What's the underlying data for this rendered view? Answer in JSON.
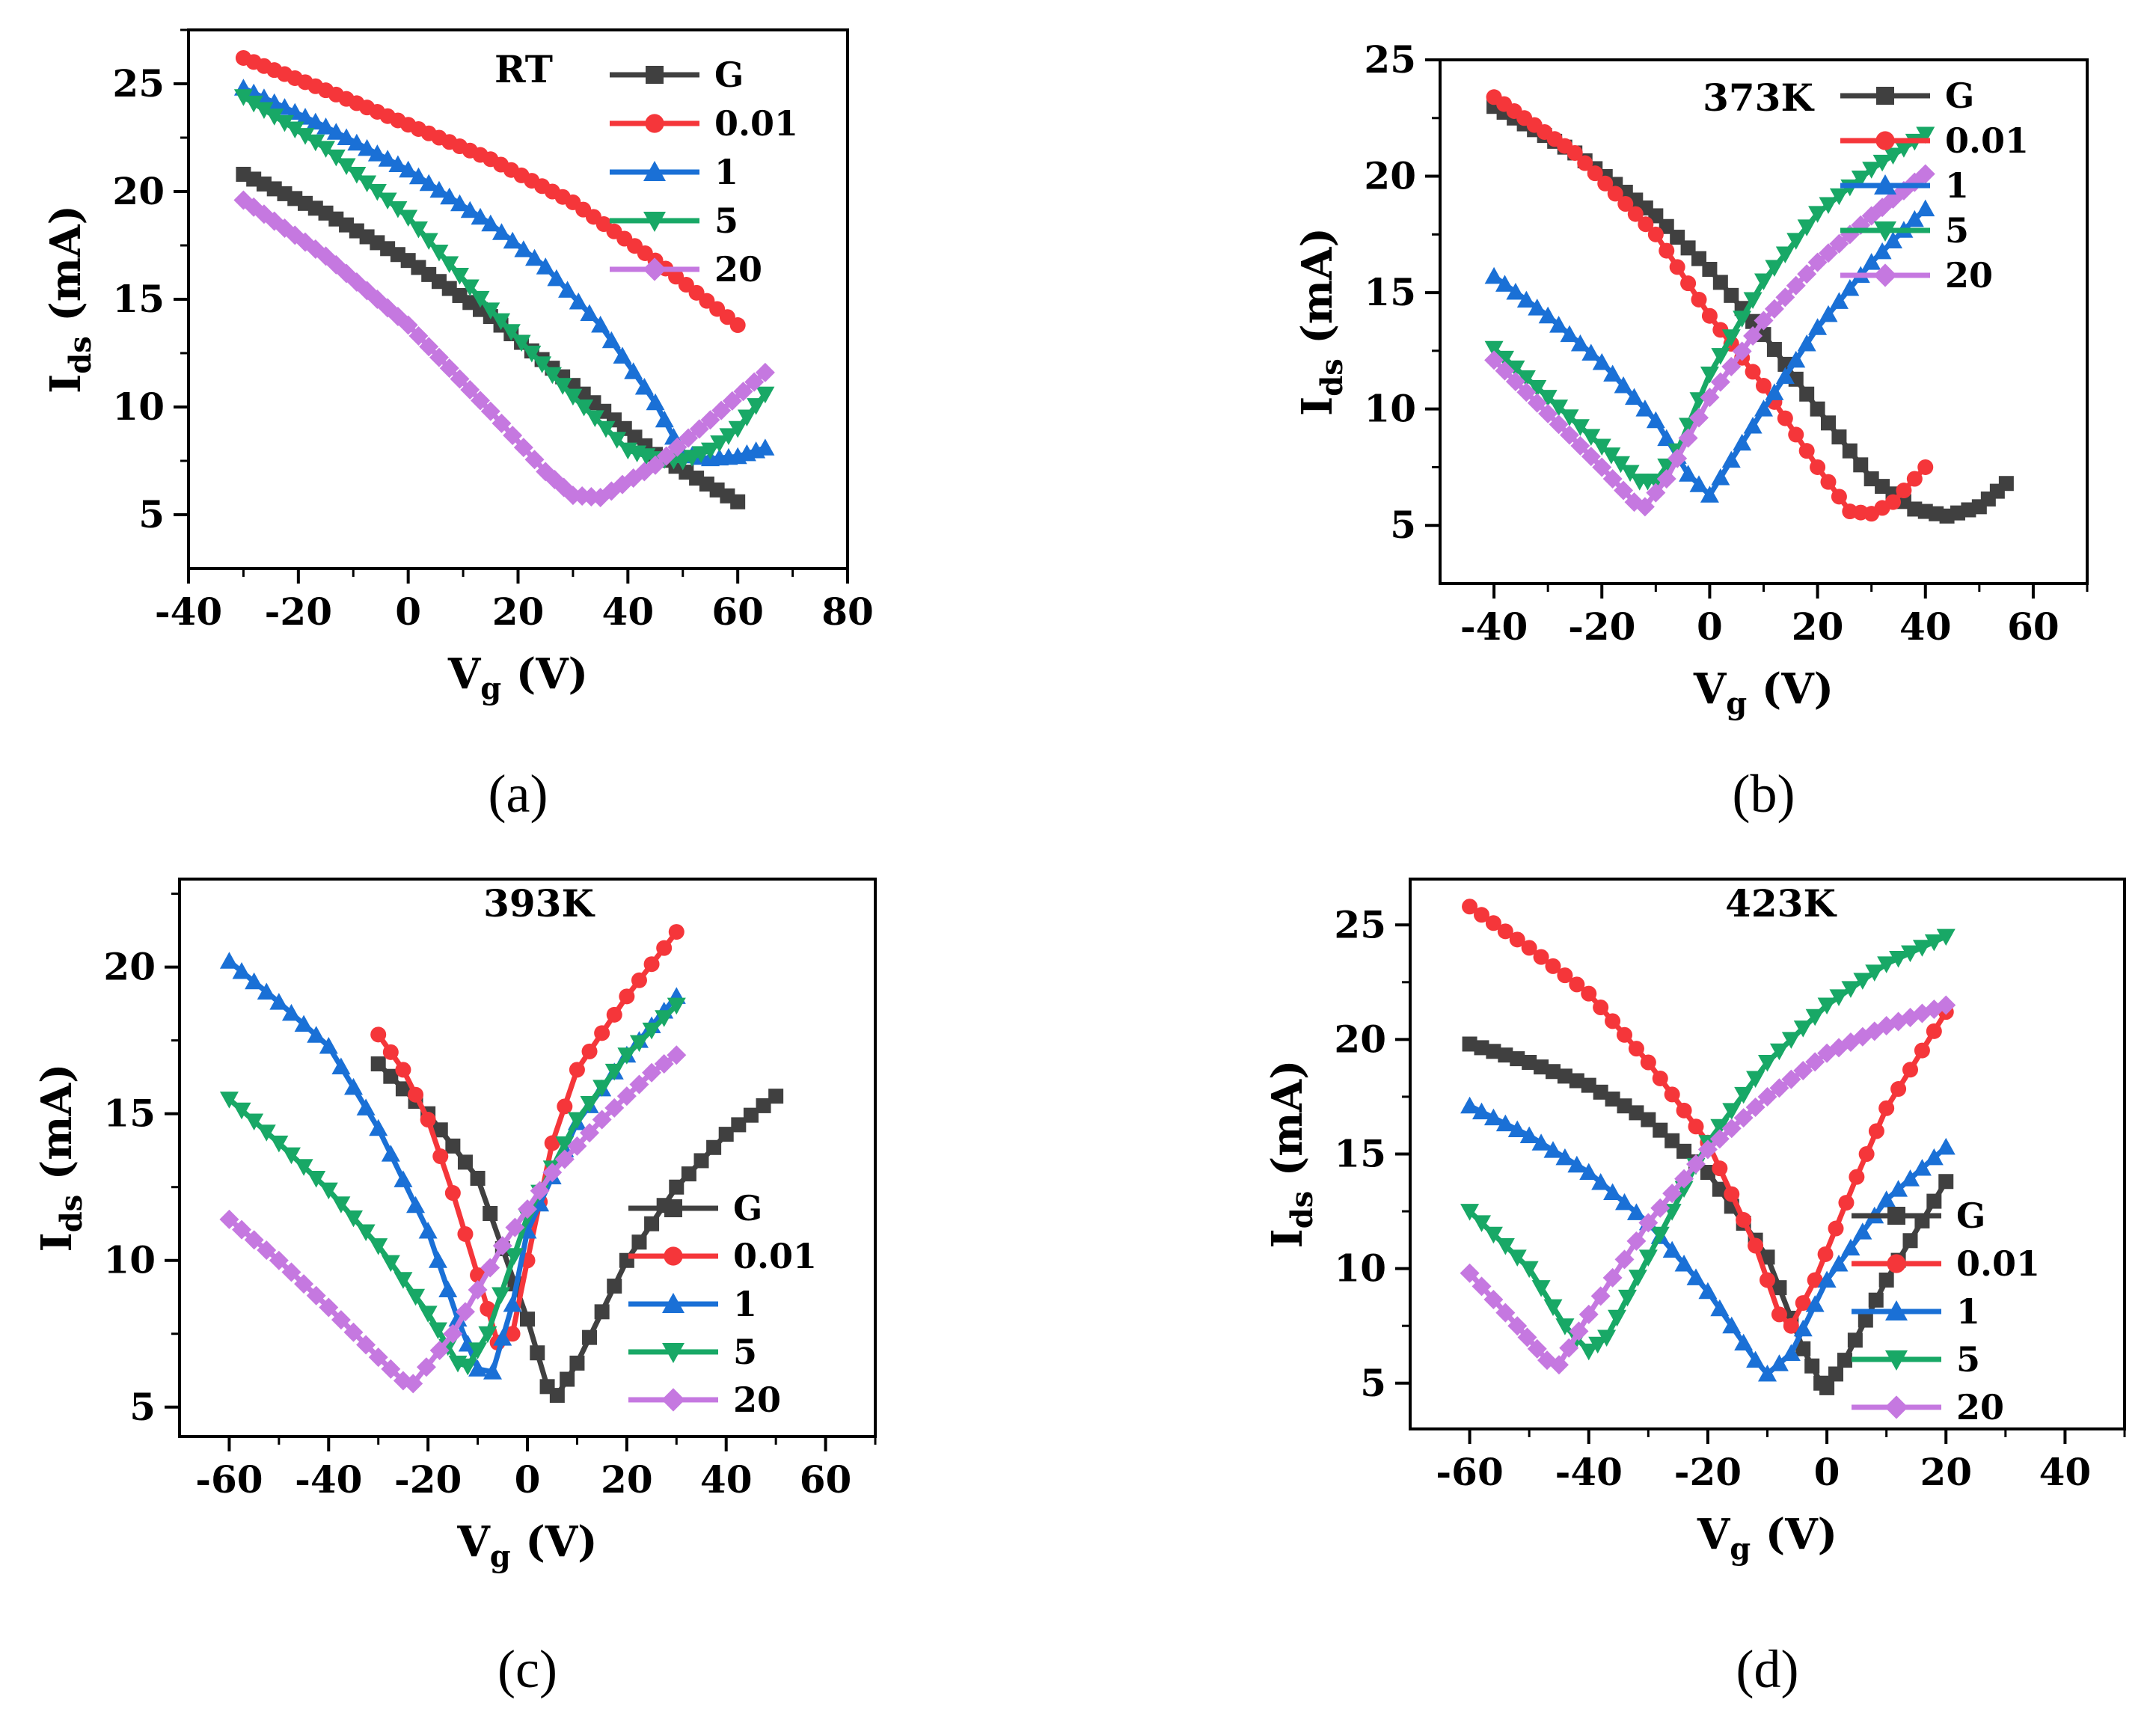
{
  "colors": {
    "G": "#404040",
    "0.01": "#f5363a",
    "1": "#1a70d6",
    "5": "#18a866",
    "20": "#c578e0"
  },
  "markers": {
    "G": "square",
    "0.01": "circle",
    "1": "triangle-up",
    "5": "triangle-down",
    "20": "diamond"
  },
  "chart_data": [
    {
      "type": "line",
      "panel_label": "(a)",
      "title": "RT",
      "xlabel": "V",
      "xlabel_sub": "g",
      "xlabel_unit": " (V)",
      "ylabel": "I",
      "ylabel_sub": "ds",
      "ylabel_unit": " (mA)",
      "xlim": [
        -40,
        80
      ],
      "ylim": [
        2.5,
        27.5
      ],
      "xticks": [
        -40,
        -20,
        0,
        20,
        40,
        60,
        80
      ],
      "yticks": [
        5,
        10,
        15,
        20,
        25
      ],
      "legend_position": "top-right",
      "grid": false,
      "series": [
        {
          "name": "G",
          "x": [
            -30,
            -15,
            0,
            15,
            30,
            45,
            60
          ],
          "y": [
            20.8,
            19.0,
            16.8,
            14.2,
            11.0,
            7.8,
            5.6
          ]
        },
        {
          "name": "0.01",
          "x": [
            -30,
            -15,
            0,
            15,
            30,
            45,
            60
          ],
          "y": [
            26.2,
            24.7,
            23.1,
            21.5,
            19.5,
            16.8,
            13.8
          ]
        },
        {
          "name": "1",
          "x": [
            -30,
            -15,
            0,
            15,
            25,
            35,
            45,
            50,
            55,
            60,
            65
          ],
          "y": [
            24.8,
            23.0,
            21.0,
            18.5,
            16.5,
            13.8,
            10.2,
            7.8,
            7.6,
            7.7,
            8.1
          ]
        },
        {
          "name": "5",
          "x": [
            -30,
            -15,
            0,
            15,
            30,
            40,
            45,
            50,
            55,
            60,
            65
          ],
          "y": [
            24.4,
            22.0,
            18.8,
            14.5,
            10.5,
            8.0,
            7.6,
            7.5,
            8.0,
            9.0,
            10.6
          ]
        },
        {
          "name": "20",
          "x": [
            -30,
            -15,
            0,
            15,
            25,
            30,
            35,
            45,
            55,
            65
          ],
          "y": [
            19.6,
            17.0,
            13.8,
            9.8,
            7.0,
            5.9,
            5.8,
            7.3,
            9.4,
            11.6
          ]
        }
      ]
    },
    {
      "type": "line",
      "panel_label": "(b)",
      "title": "373K",
      "xlabel": "V",
      "xlabel_sub": "g",
      "xlabel_unit": " (V)",
      "ylabel": "I",
      "ylabel_sub": "ds",
      "ylabel_unit": " (mA)",
      "xlim": [
        -50,
        70
      ],
      "ylim": [
        2.5,
        25
      ],
      "xticks": [
        -40,
        -20,
        0,
        20,
        40,
        60
      ],
      "yticks": [
        5,
        10,
        15,
        20,
        25
      ],
      "legend_position": "top-right",
      "grid": false,
      "series": [
        {
          "name": "G",
          "x": [
            -40,
            -25,
            -10,
            0,
            10,
            20,
            30,
            38,
            44,
            50,
            55
          ],
          "y": [
            23.0,
            21.0,
            18.3,
            16.0,
            13.2,
            10.0,
            7.0,
            5.7,
            5.4,
            5.8,
            6.8
          ]
        },
        {
          "name": "0.01",
          "x": [
            -40,
            -25,
            -10,
            0,
            10,
            20,
            26,
            30,
            34,
            40
          ],
          "y": [
            23.4,
            21.0,
            17.5,
            14.0,
            11.0,
            7.5,
            5.6,
            5.5,
            6.0,
            7.5
          ]
        },
        {
          "name": "1",
          "x": [
            -40,
            -30,
            -20,
            -10,
            -4,
            0,
            4,
            10,
            20,
            30,
            40
          ],
          "y": [
            15.7,
            14.0,
            12.0,
            9.5,
            7.2,
            6.3,
            7.8,
            10.0,
            13.5,
            16.3,
            18.6
          ]
        },
        {
          "name": "5",
          "x": [
            -40,
            -30,
            -20,
            -13,
            -10,
            -6,
            0,
            10,
            20,
            30,
            40
          ],
          "y": [
            12.6,
            10.5,
            8.4,
            6.9,
            6.9,
            8.2,
            11.5,
            15.5,
            18.4,
            20.3,
            21.8
          ]
        },
        {
          "name": "20",
          "x": [
            -40,
            -30,
            -20,
            -14,
            -12,
            -8,
            0,
            10,
            20,
            30,
            40
          ],
          "y": [
            12.1,
            9.8,
            7.5,
            6.0,
            5.8,
            7.0,
            10.5,
            13.8,
            16.3,
            18.3,
            20.1
          ]
        }
      ]
    },
    {
      "type": "line",
      "panel_label": "(c)",
      "title": "393K",
      "xlabel": "V",
      "xlabel_sub": "g",
      "xlabel_unit": " (V)",
      "ylabel": "I",
      "ylabel_sub": "ds",
      "ylabel_unit": " (mA)",
      "xlim": [
        -70,
        70
      ],
      "ylim": [
        4,
        23
      ],
      "xticks": [
        -60,
        -40,
        -20,
        0,
        20,
        40,
        60
      ],
      "yticks": [
        5,
        10,
        15,
        20
      ],
      "legend_position": "bottom-right",
      "grid": false,
      "series": [
        {
          "name": "G",
          "x": [
            -30,
            -20,
            -10,
            0,
            4,
            6,
            10,
            20,
            30,
            40,
            50
          ],
          "y": [
            16.7,
            15.0,
            12.8,
            8.0,
            5.7,
            5.4,
            6.5,
            10.0,
            12.5,
            14.3,
            15.6
          ]
        },
        {
          "name": "0.01",
          "x": [
            -30,
            -25,
            -20,
            -15,
            -10,
            -6,
            -3,
            0,
            5,
            10,
            20,
            30
          ],
          "y": [
            17.7,
            16.5,
            14.8,
            12.3,
            9.5,
            7.2,
            7.5,
            10.0,
            14.0,
            16.5,
            19.0,
            21.2
          ]
        },
        {
          "name": "1",
          "x": [
            -60,
            -50,
            -40,
            -30,
            -20,
            -14,
            -10,
            -7,
            -3,
            0,
            10,
            20,
            30
          ],
          "y": [
            20.2,
            18.8,
            17.3,
            14.5,
            11.0,
            8.0,
            6.3,
            6.2,
            8.5,
            11.0,
            14.7,
            17.0,
            19.0
          ]
        },
        {
          "name": "5",
          "x": [
            -60,
            -50,
            -40,
            -30,
            -20,
            -14,
            -12,
            -8,
            0,
            10,
            20,
            30
          ],
          "y": [
            15.5,
            14.0,
            12.4,
            10.5,
            8.2,
            6.5,
            6.4,
            7.5,
            11.5,
            14.8,
            17.0,
            18.7
          ]
        },
        {
          "name": "20",
          "x": [
            -60,
            -50,
            -40,
            -30,
            -25,
            -23,
            -15,
            -5,
            5,
            15,
            25,
            30
          ],
          "y": [
            11.4,
            10.0,
            8.4,
            6.7,
            5.9,
            5.8,
            7.5,
            10.5,
            13.0,
            14.8,
            16.4,
            17.0
          ]
        }
      ]
    },
    {
      "type": "line",
      "panel_label": "(d)",
      "title": "423K",
      "xlabel": "V",
      "xlabel_sub": "g",
      "xlabel_unit": " (V)",
      "ylabel": "I",
      "ylabel_sub": "ds",
      "ylabel_unit": " (mA)",
      "xlim": [
        -70,
        50
      ],
      "ylim": [
        3,
        27
      ],
      "xticks": [
        -60,
        -40,
        -20,
        0,
        20,
        40
      ],
      "yticks": [
        5,
        10,
        15,
        20,
        25
      ],
      "legend_position": "bottom-right",
      "grid": false,
      "series": [
        {
          "name": "G",
          "x": [
            -60,
            -50,
            -40,
            -30,
            -20,
            -10,
            -4,
            -1,
            0,
            3,
            10,
            20
          ],
          "y": [
            19.8,
            19.0,
            18.0,
            16.5,
            14.2,
            10.5,
            6.5,
            5.0,
            4.8,
            6.0,
            9.5,
            13.8
          ]
        },
        {
          "name": "0.01",
          "x": [
            -60,
            -50,
            -40,
            -30,
            -20,
            -12,
            -8,
            -6,
            -2,
            5,
            10,
            20
          ],
          "y": [
            25.8,
            24.0,
            22.0,
            19.0,
            15.5,
            11.0,
            8.0,
            7.5,
            9.5,
            14.0,
            17.0,
            21.2
          ]
        },
        {
          "name": "1",
          "x": [
            -60,
            -50,
            -40,
            -30,
            -20,
            -12,
            -10,
            -6,
            0,
            10,
            20
          ],
          "y": [
            17.1,
            15.8,
            14.2,
            12.0,
            9.0,
            6.0,
            5.4,
            6.3,
            9.5,
            13.0,
            15.3
          ]
        },
        {
          "name": "5",
          "x": [
            -60,
            -50,
            -44,
            -40,
            -37,
            -30,
            -20,
            -10,
            0,
            10,
            20
          ],
          "y": [
            12.5,
            10.0,
            7.5,
            6.4,
            7.0,
            10.5,
            15.5,
            19.0,
            21.5,
            23.3,
            24.5
          ]
        },
        {
          "name": "20",
          "x": [
            -60,
            -52,
            -47,
            -45,
            -40,
            -30,
            -20,
            -10,
            0,
            10,
            20
          ],
          "y": [
            9.8,
            7.5,
            6.0,
            5.8,
            8.0,
            12.0,
            15.2,
            17.5,
            19.4,
            20.6,
            21.5
          ]
        }
      ]
    }
  ]
}
